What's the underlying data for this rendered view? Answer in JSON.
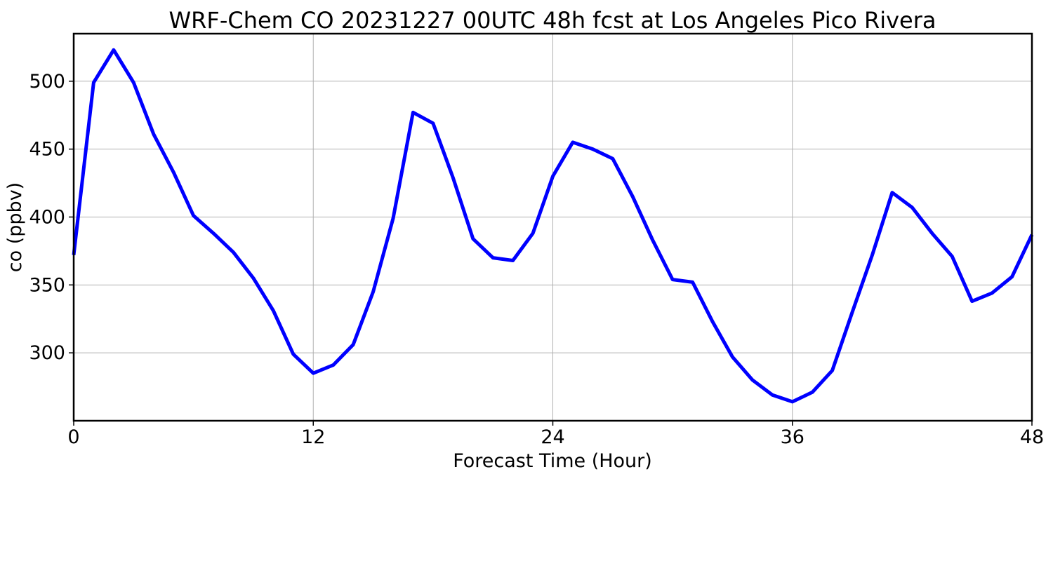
{
  "chart_data": {
    "type": "line",
    "title": "WRF-Chem CO  20231227 00UTC 48h fcst at Los Angeles Pico Rivera",
    "xlabel": "Forecast Time (Hour)",
    "ylabel": "co  (ppbv)",
    "xlim": [
      0,
      48
    ],
    "ylim": [
      250,
      535
    ],
    "xticks": [
      0,
      12,
      24,
      36,
      48
    ],
    "yticks": [
      300,
      350,
      400,
      450,
      500
    ],
    "grid": true,
    "series": [
      {
        "color": "#0000ff",
        "x": [
          0,
          1,
          2,
          3,
          4,
          5,
          6,
          7,
          8,
          9,
          10,
          11,
          12,
          13,
          14,
          15,
          16,
          17,
          18,
          19,
          20,
          21,
          22,
          23,
          24,
          25,
          26,
          27,
          28,
          29,
          30,
          31,
          32,
          33,
          34,
          35,
          36,
          37,
          38,
          39,
          40,
          41,
          42,
          43,
          44,
          45,
          46,
          47,
          48
        ],
        "y": [
          372,
          499,
          523,
          499,
          461,
          433,
          401,
          388,
          374,
          355,
          331,
          299,
          285,
          291,
          306,
          345,
          399,
          477,
          469,
          429,
          384,
          370,
          368,
          388,
          430,
          455,
          450,
          443,
          415,
          383,
          354,
          352,
          323,
          297,
          280,
          269,
          264,
          271,
          287,
          330,
          372,
          418,
          407,
          388,
          371,
          338,
          344,
          356,
          387
        ]
      }
    ]
  }
}
